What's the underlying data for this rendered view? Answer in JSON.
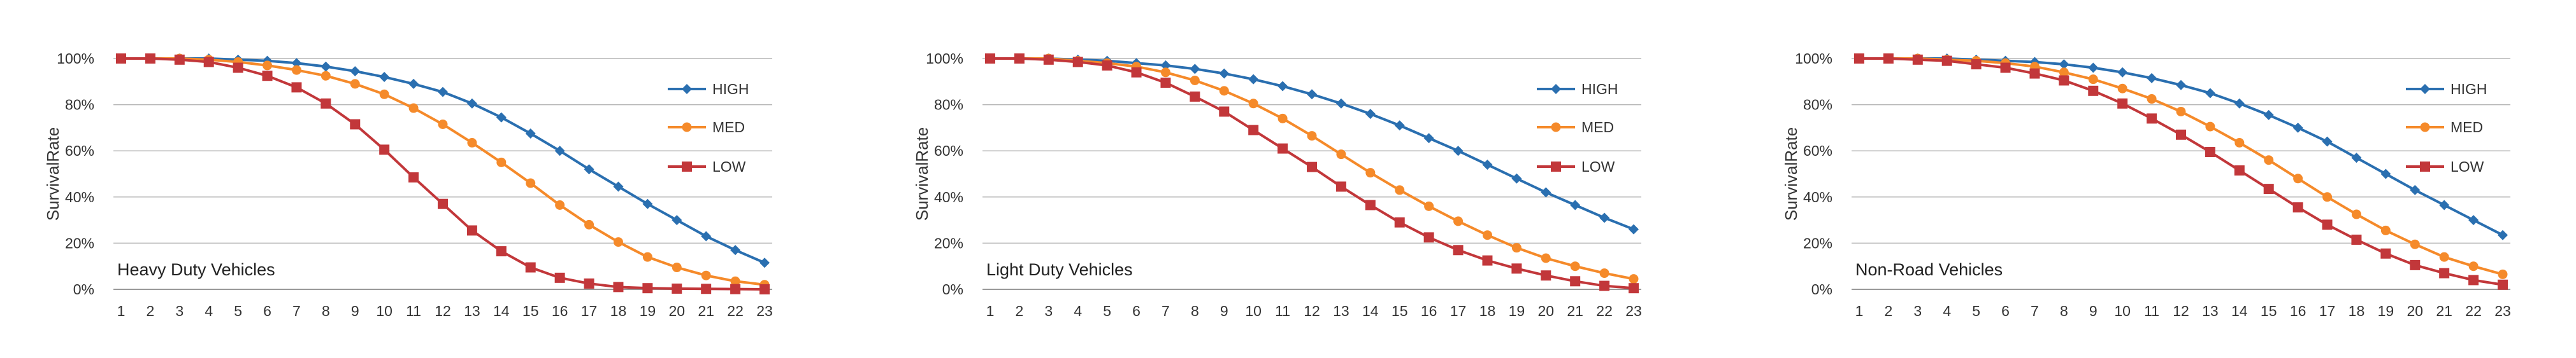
{
  "colors": {
    "HIGH": "#2a6fb0",
    "MED": "#f58a2a",
    "LOW": "#c2373a",
    "grid": "#b5b5b5"
  },
  "chart_data": [
    {
      "type": "line",
      "title": "Heavy Duty Vehicles",
      "ylabel": "SurvivalRate",
      "xlabel": "",
      "ylim": [
        0,
        100
      ],
      "yticks": [
        "0%",
        "20%",
        "40%",
        "60%",
        "80%",
        "100%"
      ],
      "legend": "right",
      "grid": true,
      "x": [
        1,
        2,
        3,
        4,
        5,
        6,
        7,
        8,
        9,
        10,
        11,
        12,
        13,
        14,
        15,
        16,
        17,
        18,
        19,
        20,
        21,
        22,
        23
      ],
      "series": [
        {
          "name": "HIGH",
          "marker": "diamond",
          "values": [
            100,
            100,
            100,
            100,
            99.5,
            99,
            98,
            96.5,
            94.5,
            92,
            89,
            85.5,
            80.5,
            74.5,
            67.5,
            60,
            52,
            44.5,
            37,
            30,
            23,
            17,
            11.5
          ]
        },
        {
          "name": "MED",
          "marker": "circle",
          "values": [
            100,
            100,
            100,
            99.5,
            98.5,
            97,
            95,
            92.5,
            89,
            84.5,
            78.5,
            71.5,
            63.5,
            55,
            46,
            36.5,
            28,
            20.5,
            14,
            9.5,
            6,
            3.5,
            2
          ]
        },
        {
          "name": "LOW",
          "marker": "square",
          "values": [
            100,
            100,
            99.5,
            98.5,
            96,
            92.5,
            87.5,
            80.5,
            71.5,
            60.5,
            48.5,
            37,
            25.5,
            16.5,
            9.5,
            5,
            2.5,
            1,
            0.5,
            0.3,
            0.2,
            0.1,
            0
          ]
        }
      ]
    },
    {
      "type": "line",
      "title": "Light Duty Vehicles",
      "ylabel": "SurvivalRate",
      "xlabel": "",
      "ylim": [
        0,
        100
      ],
      "yticks": [
        "0%",
        "20%",
        "40%",
        "60%",
        "80%",
        "100%"
      ],
      "legend": "right",
      "grid": true,
      "x": [
        1,
        2,
        3,
        4,
        5,
        6,
        7,
        8,
        9,
        10,
        11,
        12,
        13,
        14,
        15,
        16,
        17,
        18,
        19,
        20,
        21,
        22,
        23
      ],
      "series": [
        {
          "name": "HIGH",
          "marker": "diamond",
          "values": [
            100,
            100,
            100,
            99.5,
            99,
            98,
            97,
            95.5,
            93.5,
            91,
            88,
            84.5,
            80.5,
            76,
            71,
            65.5,
            60,
            54,
            48,
            42,
            36.5,
            31,
            26
          ]
        },
        {
          "name": "MED",
          "marker": "circle",
          "values": [
            100,
            100,
            100,
            99,
            98,
            96.5,
            94,
            90.5,
            86,
            80.5,
            74,
            66.5,
            58.5,
            50.5,
            43,
            36,
            29.5,
            23.5,
            18,
            13.5,
            10,
            7,
            4.5
          ]
        },
        {
          "name": "LOW",
          "marker": "square",
          "values": [
            100,
            100,
            99.5,
            98.5,
            97,
            94,
            89.5,
            83.5,
            77,
            69,
            61,
            53,
            44.5,
            36.5,
            29,
            22.5,
            17,
            12.5,
            9,
            6,
            3.5,
            1.5,
            0.5
          ]
        }
      ]
    },
    {
      "type": "line",
      "title": "Non-Road Vehicles",
      "ylabel": "SurvivalRate",
      "xlabel": "",
      "ylim": [
        0,
        100
      ],
      "yticks": [
        "0%",
        "20%",
        "40%",
        "60%",
        "80%",
        "100%"
      ],
      "legend": "right",
      "grid": true,
      "x": [
        1,
        2,
        3,
        4,
        5,
        6,
        7,
        8,
        9,
        10,
        11,
        12,
        13,
        14,
        15,
        16,
        17,
        18,
        19,
        20,
        21,
        22,
        23
      ],
      "series": [
        {
          "name": "HIGH",
          "marker": "diamond",
          "values": [
            100,
            100,
            100,
            100,
            99.5,
            99,
            98.5,
            97.5,
            96,
            94,
            91.5,
            88.5,
            85,
            80.5,
            75.5,
            70,
            64,
            57,
            50,
            43,
            36.5,
            30,
            23.5
          ]
        },
        {
          "name": "MED",
          "marker": "circle",
          "values": [
            100,
            100,
            100,
            99.5,
            99,
            98,
            96.5,
            94,
            91,
            87,
            82.5,
            77,
            70.5,
            63.5,
            56,
            48,
            40,
            32.5,
            25.5,
            19.5,
            14,
            10,
            6.5
          ]
        },
        {
          "name": "LOW",
          "marker": "square",
          "values": [
            100,
            100,
            99.5,
            99,
            97.5,
            96,
            93.5,
            90.5,
            86,
            80.5,
            74,
            67,
            59.5,
            51.5,
            43.5,
            35.5,
            28,
            21.5,
            15.5,
            10.5,
            7,
            4,
            2
          ]
        }
      ]
    }
  ]
}
